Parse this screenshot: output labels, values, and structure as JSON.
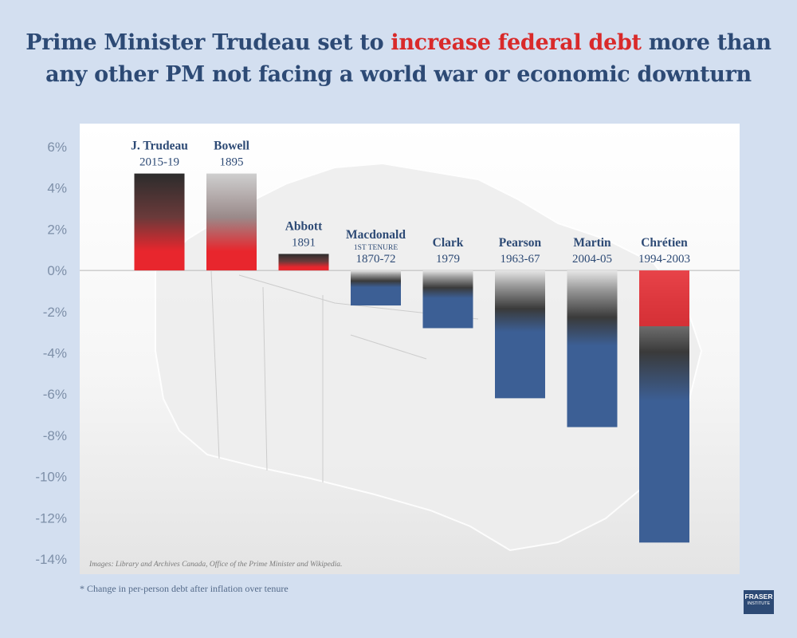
{
  "title": {
    "line1_before": "Prime Minister Trudeau set to ",
    "line1_highlight": "increase federal debt",
    "line1_after": " more than",
    "line2": "any other PM not facing a world war or economic downturn"
  },
  "colors": {
    "background": "#d3dff0",
    "title": "#2d4a75",
    "highlight": "#d92a2a",
    "increase_bar": "#e8262d",
    "decrease_bar": "#3c5f95"
  },
  "chart_data": {
    "type": "bar",
    "title": "Prime Minister Trudeau set to increase federal debt more than any other PM not facing a world war or economic downturn",
    "ylabel": "",
    "xlabel": "",
    "ylim": [
      -14,
      6
    ],
    "yticks": [
      6,
      4,
      2,
      0,
      -2,
      -4,
      -6,
      -8,
      -10,
      -12,
      -14
    ],
    "ytick_labels": [
      "6%",
      "4%",
      "2%",
      "0%",
      "-2%",
      "-4%",
      "-6%",
      "-8%",
      "-10%",
      "-12%",
      "-14%"
    ],
    "grid": false,
    "categories": [
      "J. Trudeau",
      "Bowell",
      "Abbott",
      "Macdonald",
      "Clark",
      "Pearson",
      "Martin",
      "Chrétien"
    ],
    "tenures": [
      "2015-19",
      "1895",
      "1891",
      "1870-72",
      "1979",
      "1963-67",
      "2004-05",
      "1994-2003"
    ],
    "notes": [
      "",
      "",
      "",
      "1ST TENURE",
      "",
      "",
      "",
      ""
    ],
    "values": [
      4.7,
      4.7,
      0.8,
      -1.7,
      -2.8,
      -6.2,
      -7.6,
      -13.2
    ]
  },
  "footnote": "* Change in per-person debt after inflation over tenure",
  "credit": "Images: Library and Archives Canada, Office of the Prime Minister and Wikipedia.",
  "logo": {
    "line1": "FRASER",
    "line2": "INSTITUTE"
  }
}
